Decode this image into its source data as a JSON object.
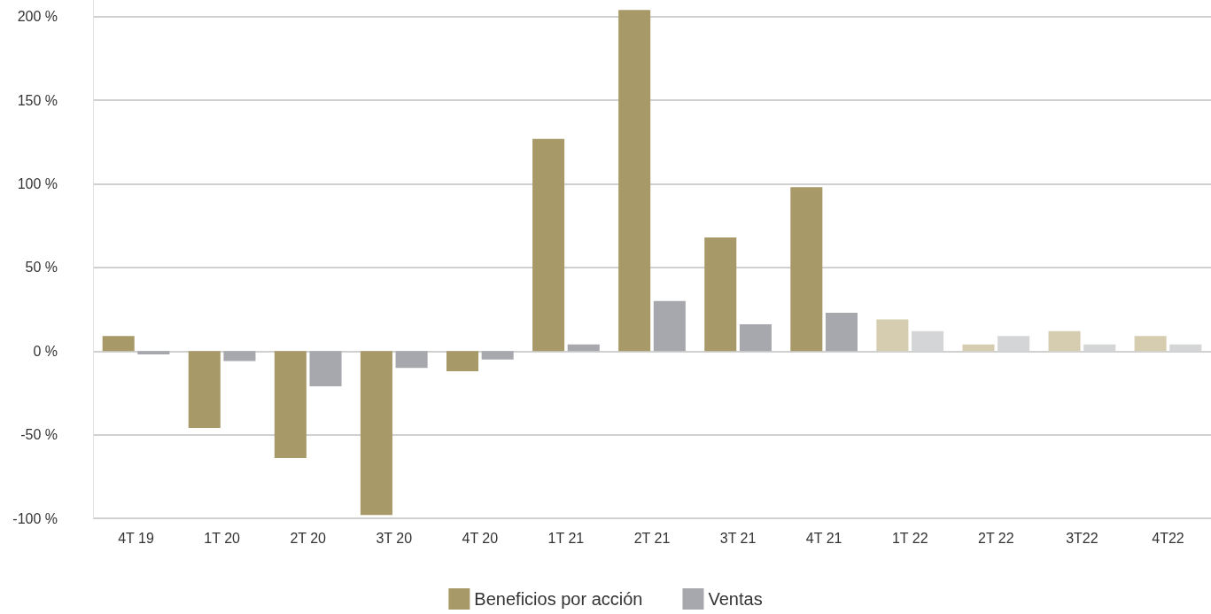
{
  "chart_data": {
    "type": "bar",
    "categories": [
      "4T 19",
      "1T 20",
      "2T 20",
      "3T 20",
      "4T 20",
      "1T 21",
      "2T 21",
      "3T 21",
      "4T 21",
      "1T 22",
      "2T 22",
      "3T22",
      "4T22"
    ],
    "series": [
      {
        "name": "Beneficios por acción",
        "color": "#a89a68",
        "values": [
          9,
          -46,
          -64,
          -98,
          -12,
          127,
          204,
          68,
          98,
          19,
          4,
          12,
          9
        ],
        "colors": [
          "#a89a68",
          "#a89a68",
          "#a89a68",
          "#a89a68",
          "#a89a68",
          "#a89a68",
          "#a89a68",
          "#a89a68",
          "#a89a68",
          "#d6cdb1",
          "#d6cdb1",
          "#d6cdb1",
          "#d6cdb1"
        ]
      },
      {
        "name": "Ventas",
        "color": "#a7a8ad",
        "values": [
          -2,
          -6,
          -21,
          -10,
          -5,
          4,
          30,
          16,
          23,
          12,
          9,
          4,
          4
        ],
        "colors": [
          "#a7a8ad",
          "#a7a8ad",
          "#a7a8ad",
          "#a7a8ad",
          "#a7a8ad",
          "#a7a8ad",
          "#a7a8ad",
          "#a7a8ad",
          "#a7a8ad",
          "#d4d5d7",
          "#d4d5d7",
          "#d4d5d7",
          "#d4d5d7"
        ]
      }
    ],
    "ylim": [
      -100,
      210
    ],
    "yticks": [
      {
        "value": -100,
        "label": "-100 %"
      },
      {
        "value": -50,
        "label": "-50 %"
      },
      {
        "value": 0,
        "label": "0 %"
      },
      {
        "value": 50,
        "label": "50 %"
      },
      {
        "value": 100,
        "label": "100 %"
      },
      {
        "value": 150,
        "label": "150 %"
      },
      {
        "value": 200,
        "label": "200 %"
      }
    ],
    "grid": "y",
    "legend": "bottom"
  }
}
